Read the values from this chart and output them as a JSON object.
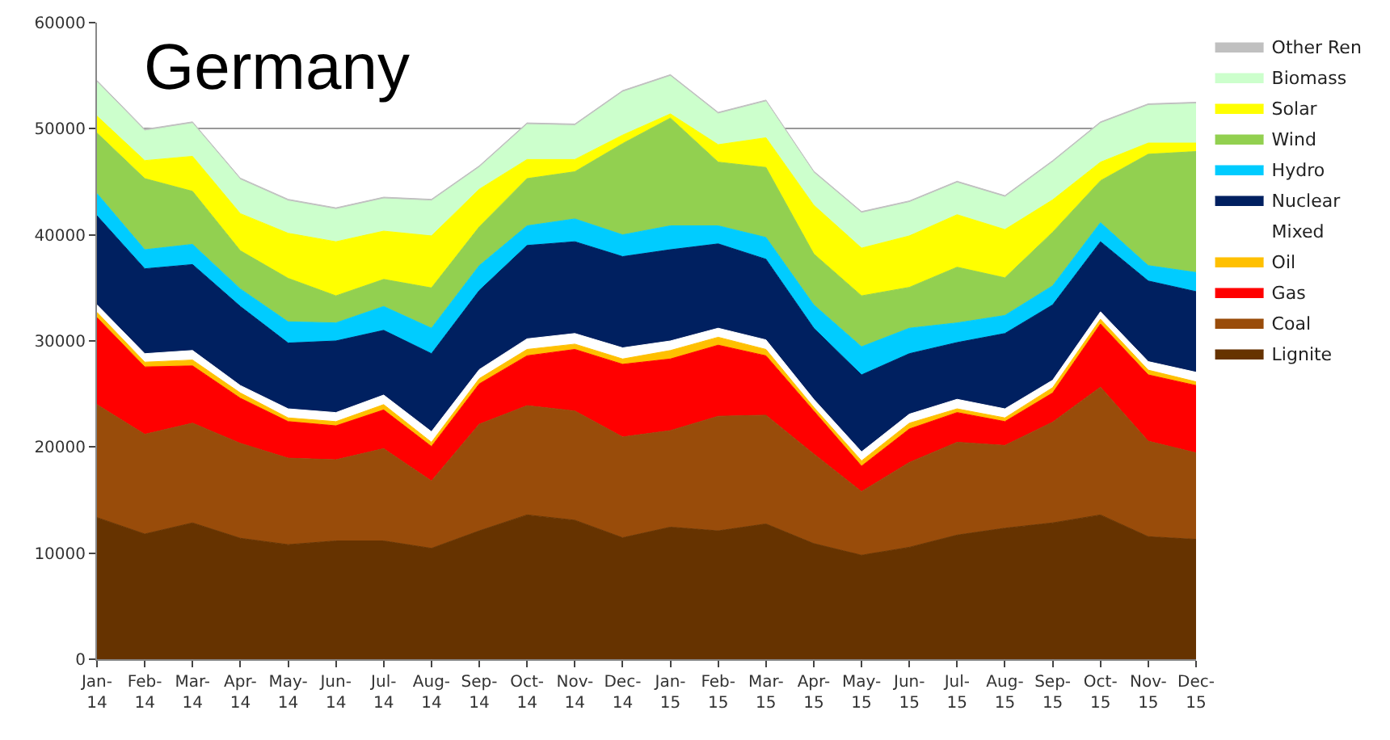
{
  "chart_data": {
    "type": "area",
    "title": "Germany",
    "stacked": true,
    "categories": [
      "Jan-14",
      "Feb-14",
      "Mar-14",
      "Apr-14",
      "May-14",
      "Jun-14",
      "Jul-14",
      "Aug-14",
      "Sep-14",
      "Oct-14",
      "Nov-14",
      "Dec-14",
      "Jan-15",
      "Feb-15",
      "Mar-15",
      "Apr-15",
      "May-15",
      "Jun-15",
      "Jul-15",
      "Aug-15",
      "Sep-15",
      "Oct-15",
      "Nov-15",
      "Dec-15"
    ],
    "series": [
      {
        "name": "Lignite",
        "color": "#663300",
        "values": [
          13350,
          11800,
          12850,
          11400,
          10800,
          11150,
          11150,
          10450,
          12100,
          13600,
          13100,
          11450,
          12450,
          12100,
          12750,
          10900,
          9800,
          10550,
          11700,
          12350,
          12850,
          13600,
          11550,
          11300
        ]
      },
      {
        "name": "Coal",
        "color": "#994c0a",
        "values": [
          10650,
          9400,
          9400,
          8950,
          8150,
          7650,
          8700,
          6350,
          10050,
          10300,
          10300,
          9500,
          9100,
          10800,
          10250,
          8450,
          6000,
          8000,
          8750,
          7800,
          9500,
          12050,
          9000,
          8150
        ]
      },
      {
        "name": "Gas",
        "color": "#ff0000",
        "values": [
          8200,
          6350,
          5400,
          4250,
          3450,
          3200,
          3650,
          3250,
          3800,
          4700,
          5800,
          6850,
          6750,
          6700,
          5600,
          4050,
          2400,
          3150,
          2800,
          2250,
          2750,
          5950,
          6250,
          6350
        ]
      },
      {
        "name": "Oil",
        "color": "#ffc000",
        "values": [
          500,
          450,
          550,
          500,
          350,
          400,
          500,
          400,
          500,
          600,
          500,
          500,
          800,
          750,
          600,
          350,
          500,
          550,
          350,
          350,
          500,
          450,
          450,
          350
        ]
      },
      {
        "name": "Mixed",
        "color": "#ffffff",
        "values": [
          700,
          800,
          900,
          700,
          850,
          850,
          900,
          1000,
          850,
          1000,
          1000,
          1050,
          900,
          850,
          900,
          750,
          850,
          850,
          900,
          850,
          700,
          700,
          800,
          900
        ]
      },
      {
        "name": "Nuclear",
        "color": "#002060",
        "values": [
          8400,
          8000,
          8100,
          7450,
          6200,
          6750,
          6100,
          7350,
          7450,
          8800,
          8650,
          8600,
          8600,
          7950,
          7600,
          6700,
          7250,
          5700,
          5350,
          7100,
          7100,
          6600,
          7600,
          7600
        ]
      },
      {
        "name": "Hydro",
        "color": "#00ccff",
        "values": [
          2100,
          1800,
          1900,
          1650,
          2000,
          1700,
          2250,
          2400,
          2350,
          1850,
          2150,
          2050,
          2250,
          1700,
          2050,
          2200,
          2650,
          2400,
          1850,
          1700,
          1800,
          1800,
          1450,
          1800
        ]
      },
      {
        "name": "Wind",
        "color": "#92d050",
        "values": [
          5700,
          6700,
          5000,
          3600,
          4100,
          2550,
          2550,
          3800,
          3650,
          4450,
          4450,
          8600,
          10150,
          6000,
          6600,
          4800,
          4800,
          3850,
          5250,
          3550,
          5050,
          3950,
          10500,
          11400
        ]
      },
      {
        "name": "Solar",
        "color": "#ffff00",
        "values": [
          1600,
          1700,
          3300,
          3500,
          4250,
          5100,
          4550,
          4900,
          3550,
          1800,
          1150,
          800,
          400,
          1650,
          2800,
          4600,
          4500,
          4850,
          4950,
          4550,
          3050,
          1750,
          1050,
          800
        ]
      },
      {
        "name": "Biomass",
        "color": "#ccffcc",
        "values": [
          3200,
          2800,
          3100,
          3200,
          3050,
          3050,
          3050,
          3300,
          2050,
          3300,
          3200,
          4050,
          3550,
          2900,
          3400,
          3050,
          3300,
          3150,
          3000,
          3050,
          3550,
          3650,
          3550,
          3700
        ]
      },
      {
        "name": "Other Ren",
        "color": "#c0c0c0",
        "values": [
          150,
          150,
          150,
          150,
          150,
          150,
          150,
          150,
          150,
          150,
          150,
          150,
          150,
          150,
          150,
          150,
          150,
          150,
          150,
          150,
          150,
          150,
          150,
          150
        ]
      }
    ],
    "ylim": [
      0,
      60000
    ],
    "yticks": [
      0,
      10000,
      20000,
      30000,
      40000,
      50000,
      60000
    ],
    "grid": "y",
    "legend": "right"
  }
}
